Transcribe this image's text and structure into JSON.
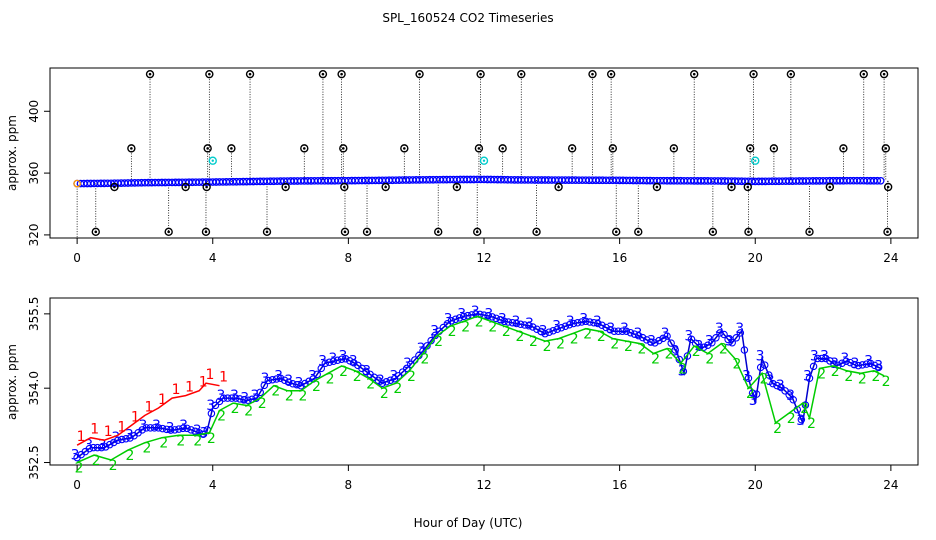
{
  "title": "SPL_160524  CO2 Timeseries",
  "colors": {
    "series1": "#ff0000",
    "series2": "#00cc00",
    "series3": "#0000ff",
    "outlier": "#000000",
    "flagged": "#00cccc",
    "zero_marker": "#ff9900",
    "line": "#0000cc"
  },
  "chart_data": [
    {
      "type": "scatter",
      "name": "overview",
      "title": "SPL_160524  CO2 Timeseries",
      "xlabel": "",
      "ylabel": "approx. ppm",
      "xlim": [
        -0.8,
        24.8
      ],
      "ylim": [
        318,
        428
      ],
      "x_ticks": [
        0,
        4,
        8,
        12,
        16,
        20,
        24
      ],
      "x_tick_labels": [
        "0",
        "4",
        "8",
        "12",
        "16",
        "20",
        "24"
      ],
      "y_ticks": [
        320,
        360,
        400
      ],
      "y_tick_labels": [
        "320",
        "360",
        "400"
      ],
      "baseline": [
        [
          0,
          353.2
        ],
        [
          1,
          353.4
        ],
        [
          2,
          353.8
        ],
        [
          3,
          354.0
        ],
        [
          4,
          354.2
        ],
        [
          5,
          354.5
        ],
        [
          6,
          354.8
        ],
        [
          7,
          355.0
        ],
        [
          8,
          355.1
        ],
        [
          9,
          355.3
        ],
        [
          10,
          355.6
        ],
        [
          11,
          355.8
        ],
        [
          12,
          355.9
        ],
        [
          13,
          355.6
        ],
        [
          14,
          355.5
        ],
        [
          15,
          355.4
        ],
        [
          16,
          355.3
        ],
        [
          17,
          355.1
        ],
        [
          18,
          355.0
        ],
        [
          19,
          354.9
        ],
        [
          20,
          354.6
        ],
        [
          21,
          354.8
        ],
        [
          22,
          355.0
        ],
        [
          23,
          355.1
        ],
        [
          23.8,
          355.0
        ]
      ],
      "outliers_high": [
        2.15,
        3.9,
        5.1,
        7.25,
        7.8,
        10.1,
        11.9,
        13.1,
        15.2,
        15.75,
        18.2,
        19.95,
        21.05,
        23.2,
        23.8
      ],
      "high_value": 424,
      "outliers_mid": [
        1.6,
        3.85,
        4.55,
        6.7,
        7.85,
        9.65,
        11.85,
        12.55,
        14.6,
        15.8,
        17.6,
        19.85,
        20.55,
        22.6,
        23.85
      ],
      "mid_value": 376,
      "outliers_low": [
        0.55,
        2.7,
        3.8,
        5.6,
        7.9,
        8.55,
        10.65,
        11.8,
        13.55,
        15.9,
        16.55,
        18.75,
        19.8,
        21.6,
        23.9
      ],
      "low_value": 322,
      "outliers_near": [
        1.1,
        3.2,
        3.82,
        6.15,
        7.88,
        9.1,
        11.2,
        14.2,
        17.1,
        19.3,
        19.78,
        22.2,
        23.92
      ],
      "near_value": 351,
      "flagged": [
        [
          4.0,
          368
        ],
        [
          12.0,
          368
        ],
        [
          20.0,
          368
        ]
      ]
    },
    {
      "type": "line",
      "name": "detail",
      "xlabel": "Hour of Day (UTC)",
      "ylabel": "approx. ppm",
      "xlim": [
        -0.8,
        24.8
      ],
      "ylim": [
        352.45,
        355.82
      ],
      "x_ticks": [
        0,
        4,
        8,
        12,
        16,
        20,
        24
      ],
      "x_tick_labels": [
        "0",
        "4",
        "8",
        "12",
        "16",
        "20",
        "24"
      ],
      "y_ticks": [
        352.5,
        354.0,
        355.5
      ],
      "y_tick_labels": [
        "352.5",
        "354.0",
        "355.5"
      ],
      "series_labels": [
        "1",
        "2",
        "3"
      ],
      "series": [
        {
          "name": "3",
          "values": [
            [
              0,
              352.6
            ],
            [
              0.4,
              352.8
            ],
            [
              0.8,
              352.8
            ],
            [
              1.2,
              352.95
            ],
            [
              1.6,
              353.0
            ],
            [
              2.0,
              353.2
            ],
            [
              2.4,
              353.2
            ],
            [
              2.8,
              353.15
            ],
            [
              3.2,
              353.2
            ],
            [
              3.6,
              353.1
            ],
            [
              3.8,
              353.05
            ],
            [
              4.0,
              353.6
            ],
            [
              4.3,
              353.8
            ],
            [
              4.7,
              353.8
            ],
            [
              5.0,
              353.75
            ],
            [
              5.3,
              353.8
            ],
            [
              5.6,
              354.15
            ],
            [
              6.0,
              354.2
            ],
            [
              6.3,
              354.1
            ],
            [
              6.6,
              354.05
            ],
            [
              7.0,
              354.2
            ],
            [
              7.3,
              354.5
            ],
            [
              7.6,
              354.55
            ],
            [
              7.9,
              354.6
            ],
            [
              8.2,
              354.5
            ],
            [
              8.6,
              354.3
            ],
            [
              9.0,
              354.1
            ],
            [
              9.4,
              354.2
            ],
            [
              9.8,
              354.45
            ],
            [
              10.2,
              354.75
            ],
            [
              10.6,
              355.1
            ],
            [
              11.0,
              355.35
            ],
            [
              11.4,
              355.45
            ],
            [
              11.8,
              355.5
            ],
            [
              12.2,
              355.45
            ],
            [
              12.6,
              355.35
            ],
            [
              13.0,
              355.3
            ],
            [
              13.4,
              355.25
            ],
            [
              13.8,
              355.1
            ],
            [
              14.2,
              355.2
            ],
            [
              14.6,
              355.3
            ],
            [
              15.0,
              355.35
            ],
            [
              15.4,
              355.3
            ],
            [
              15.8,
              355.15
            ],
            [
              16.2,
              355.15
            ],
            [
              16.6,
              355.05
            ],
            [
              17.0,
              354.9
            ],
            [
              17.4,
              355.05
            ],
            [
              17.7,
              354.7
            ],
            [
              17.9,
              354.3
            ],
            [
              18.1,
              355.0
            ],
            [
              18.4,
              354.8
            ],
            [
              18.7,
              354.9
            ],
            [
              19.0,
              355.15
            ],
            [
              19.3,
              354.9
            ],
            [
              19.6,
              355.15
            ],
            [
              19.8,
              354.2
            ],
            [
              20.0,
              353.7
            ],
            [
              20.2,
              354.6
            ],
            [
              20.5,
              354.1
            ],
            [
              20.8,
              354.0
            ],
            [
              21.1,
              353.8
            ],
            [
              21.4,
              353.3
            ],
            [
              21.6,
              354.2
            ],
            [
              21.8,
              354.6
            ],
            [
              22.1,
              354.6
            ],
            [
              22.4,
              354.45
            ],
            [
              22.7,
              354.55
            ],
            [
              23.0,
              354.45
            ],
            [
              23.4,
              354.5
            ],
            [
              23.7,
              354.4
            ]
          ]
        },
        {
          "name": "1",
          "values": [
            [
              0,
              352.85
            ],
            [
              0.4,
              353.0
            ],
            [
              0.8,
              352.95
            ],
            [
              1.2,
              353.05
            ],
            [
              1.6,
              353.25
            ],
            [
              2.0,
              353.45
            ],
            [
              2.4,
              353.6
            ],
            [
              2.8,
              353.8
            ],
            [
              3.2,
              353.85
            ],
            [
              3.6,
              353.95
            ],
            [
              3.8,
              354.1
            ],
            [
              4.2,
              354.05
            ]
          ]
        },
        {
          "name": "2",
          "values": [
            [
              0,
              352.5
            ],
            [
              0.5,
              352.65
            ],
            [
              1.0,
              352.55
            ],
            [
              1.5,
              352.75
            ],
            [
              2.0,
              352.9
            ],
            [
              2.5,
              353.0
            ],
            [
              3.0,
              353.05
            ],
            [
              3.5,
              353.05
            ],
            [
              3.9,
              353.1
            ],
            [
              4.2,
              353.55
            ],
            [
              4.6,
              353.7
            ],
            [
              5.0,
              353.65
            ],
            [
              5.4,
              353.8
            ],
            [
              5.8,
              354.05
            ],
            [
              6.2,
              353.95
            ],
            [
              6.6,
              353.95
            ],
            [
              7.0,
              354.15
            ],
            [
              7.4,
              354.3
            ],
            [
              7.8,
              354.45
            ],
            [
              8.2,
              354.35
            ],
            [
              8.6,
              354.2
            ],
            [
              9.0,
              354.0
            ],
            [
              9.4,
              354.1
            ],
            [
              9.8,
              354.35
            ],
            [
              10.2,
              354.7
            ],
            [
              10.6,
              355.05
            ],
            [
              11.0,
              355.25
            ],
            [
              11.4,
              355.35
            ],
            [
              11.8,
              355.45
            ],
            [
              12.2,
              355.35
            ],
            [
              12.6,
              355.25
            ],
            [
              13.0,
              355.15
            ],
            [
              13.4,
              355.05
            ],
            [
              13.8,
              354.95
            ],
            [
              14.2,
              355.0
            ],
            [
              14.6,
              355.1
            ],
            [
              15.0,
              355.2
            ],
            [
              15.4,
              355.15
            ],
            [
              15.8,
              355.0
            ],
            [
              16.2,
              354.95
            ],
            [
              16.6,
              354.9
            ],
            [
              17.0,
              354.7
            ],
            [
              17.4,
              354.8
            ],
            [
              17.8,
              354.5
            ],
            [
              18.2,
              354.85
            ],
            [
              18.6,
              354.7
            ],
            [
              19.0,
              354.9
            ],
            [
              19.4,
              354.6
            ],
            [
              19.8,
              354.0
            ],
            [
              20.2,
              354.3
            ],
            [
              20.6,
              353.3
            ],
            [
              21.0,
              353.5
            ],
            [
              21.4,
              353.7
            ],
            [
              21.6,
              353.4
            ],
            [
              21.9,
              354.4
            ],
            [
              22.3,
              354.45
            ],
            [
              22.7,
              354.35
            ],
            [
              23.1,
              354.3
            ],
            [
              23.5,
              354.35
            ],
            [
              23.8,
              354.25
            ]
          ]
        }
      ]
    }
  ]
}
